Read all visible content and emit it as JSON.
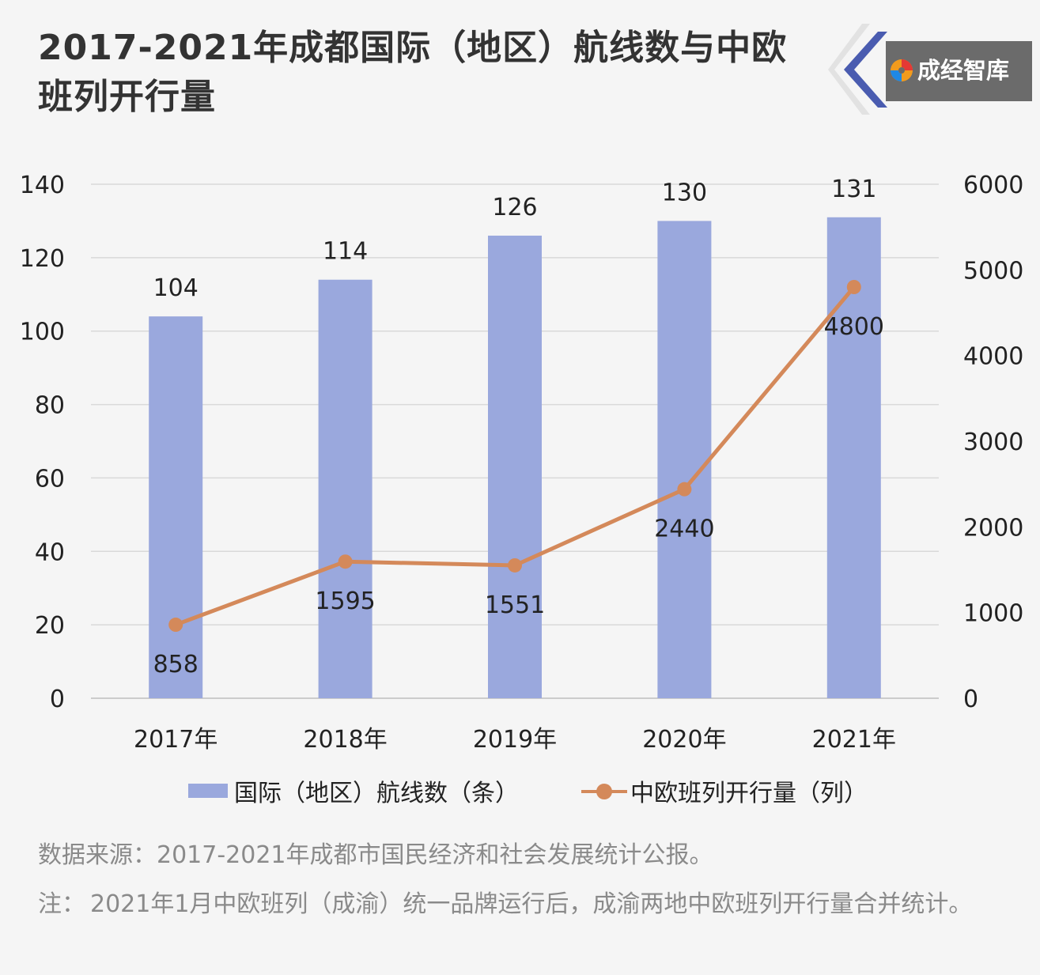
{
  "title": "2017-2021年成都国际（地区）航线数与中欧班列开行量",
  "brand": {
    "name": "成经智库",
    "logo_icon": "swirl-logo-icon",
    "color": "#6b6b6b",
    "accent": "#4a5cb0"
  },
  "chart_data": {
    "type": "bar+line",
    "categories": [
      "2017年",
      "2018年",
      "2019年",
      "2020年",
      "2021年"
    ],
    "series": [
      {
        "name": "国际（地区）航线数（条）",
        "type": "bar",
        "axis": "left",
        "color": "#9aa8dd",
        "values": [
          104,
          114,
          126,
          130,
          131
        ],
        "labels": [
          "104",
          "114",
          "126",
          "130",
          "131"
        ]
      },
      {
        "name": "中欧班列开行量（列）",
        "type": "line",
        "axis": "right",
        "color": "#d4895a",
        "values": [
          858,
          1595,
          1551,
          2440,
          4800
        ],
        "labels": [
          "858",
          "1595",
          "1551",
          "2440",
          "4800"
        ]
      }
    ],
    "y_left": {
      "min": 0,
      "max": 140,
      "ticks": [
        "0",
        "20",
        "40",
        "60",
        "80",
        "100",
        "120",
        "140"
      ]
    },
    "y_right": {
      "min": 0,
      "max": 6000,
      "ticks": [
        "0",
        "1000",
        "2000",
        "3000",
        "4000",
        "5000",
        "6000"
      ]
    },
    "grid": true,
    "legend_position": "bottom"
  },
  "footer": {
    "source": "数据来源：2017-2021年成都市国民经济和社会发展统计公报。",
    "note_prefix": "注：",
    "note": "2021年1月中欧班列（成渝）统一品牌运行后，成渝两地中欧班列开行量合并统计。"
  }
}
